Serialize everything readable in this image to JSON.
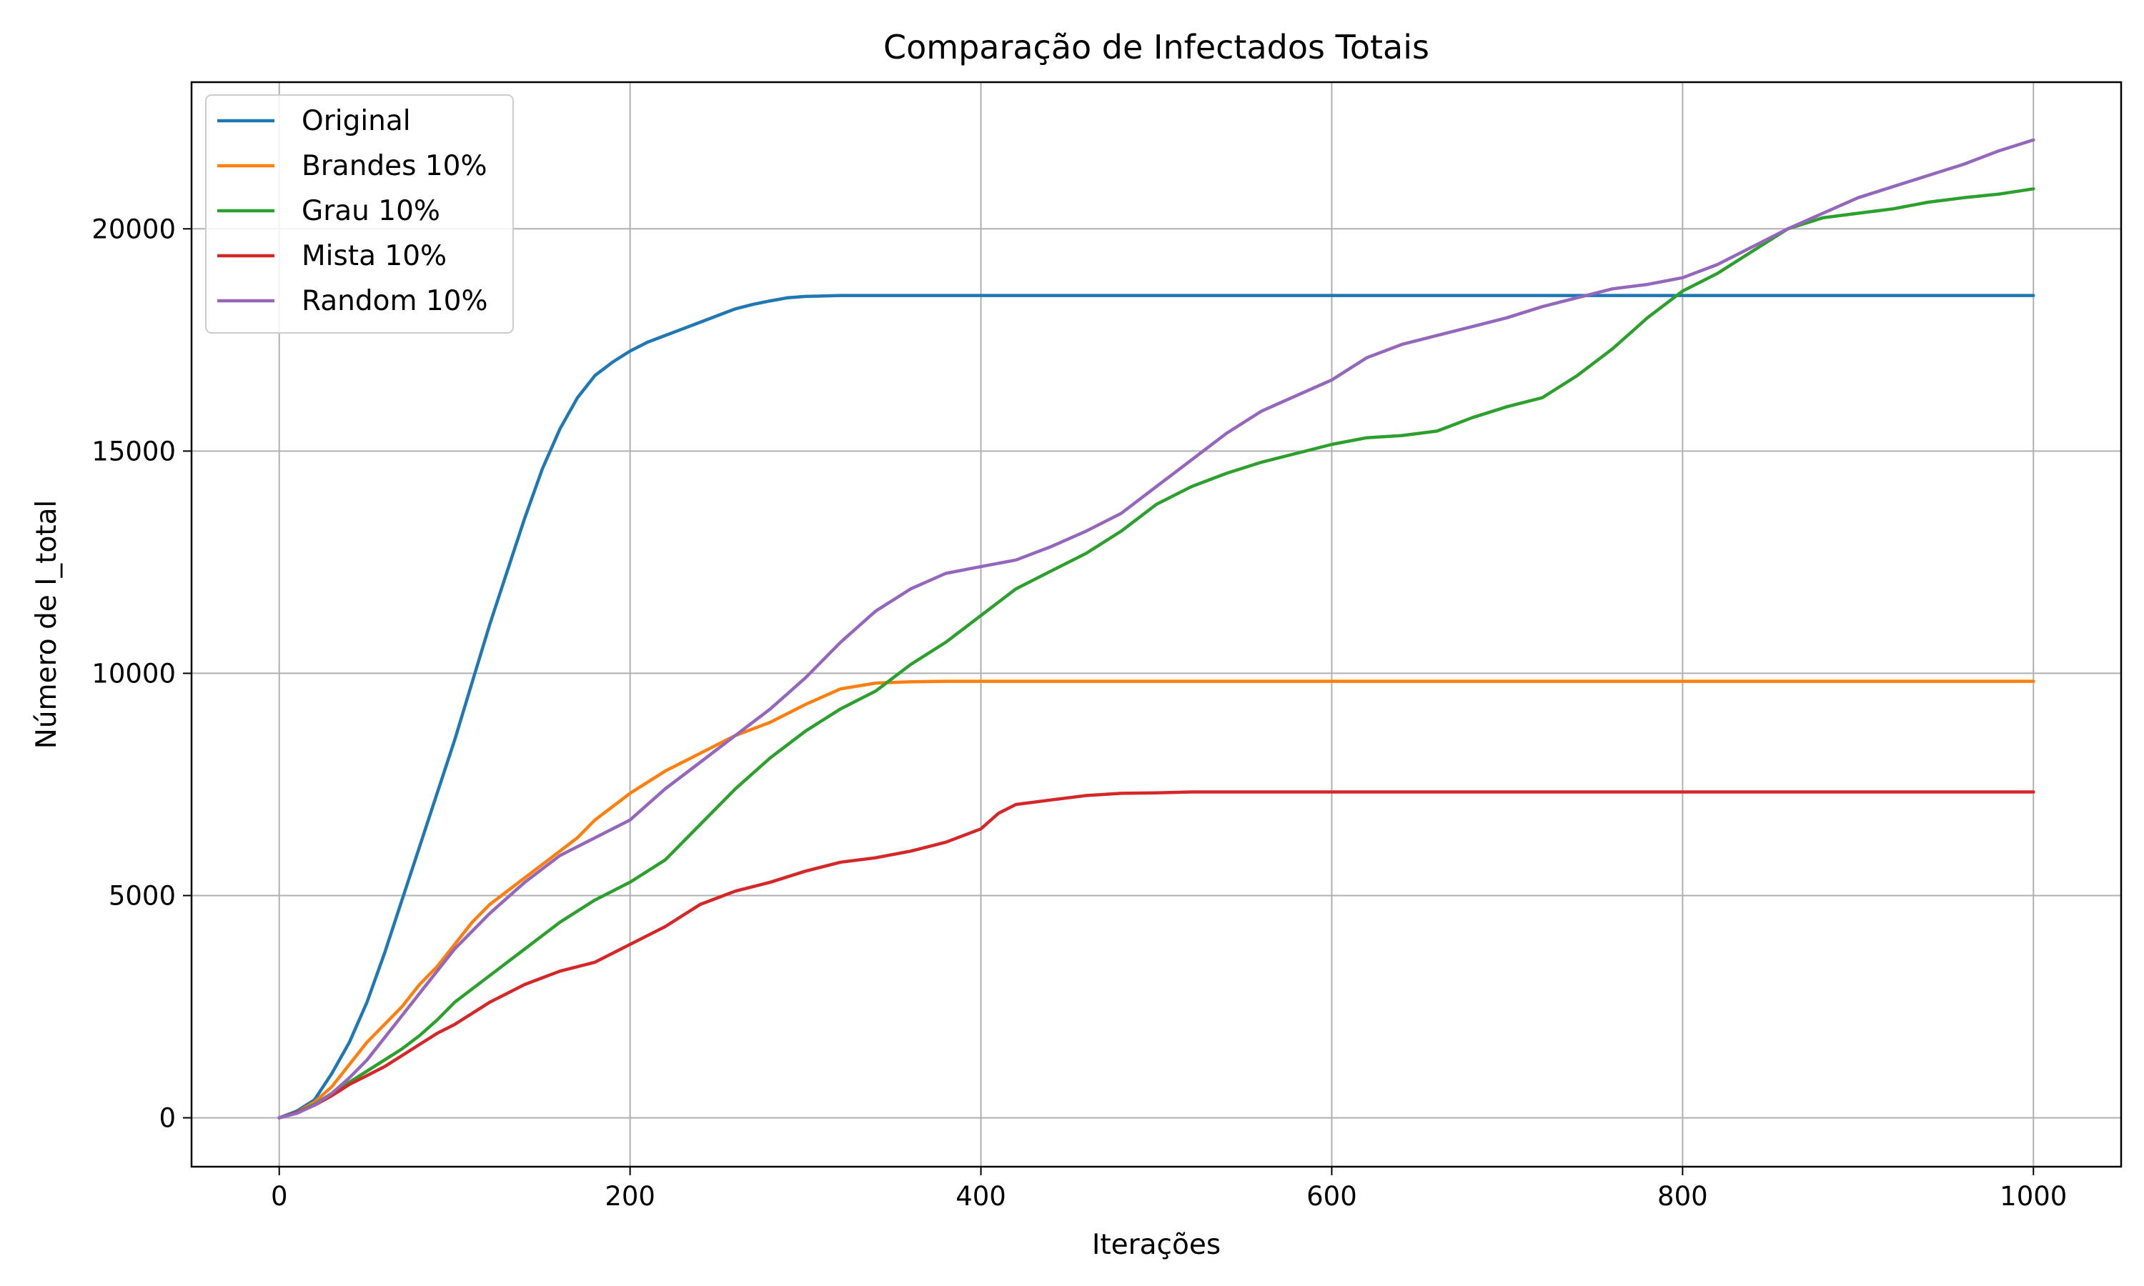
{
  "chart_data": {
    "type": "line",
    "title": "Comparação de Infectados Totais",
    "xlabel": "Iterações",
    "ylabel": "Número de I_total",
    "xlim": [
      -50,
      1050
    ],
    "ylim": [
      -1100,
      23300
    ],
    "xticks": [
      0,
      200,
      400,
      600,
      800,
      1000
    ],
    "yticks": [
      0,
      5000,
      10000,
      15000,
      20000
    ],
    "grid": true,
    "legend_position": "top-left",
    "series": [
      {
        "name": "Original",
        "color": "#1f77b4",
        "x": [
          0,
          10,
          20,
          30,
          40,
          50,
          60,
          70,
          80,
          90,
          100,
          110,
          120,
          130,
          140,
          150,
          160,
          170,
          180,
          190,
          200,
          210,
          220,
          230,
          240,
          250,
          260,
          270,
          280,
          290,
          300,
          320,
          350,
          400,
          500,
          600,
          700,
          800,
          900,
          1000
        ],
        "y": [
          0,
          150,
          400,
          1000,
          1700,
          2600,
          3700,
          4900,
          6100,
          7300,
          8500,
          9800,
          11100,
          12300,
          13500,
          14600,
          15500,
          16200,
          16700,
          17000,
          17250,
          17450,
          17600,
          17750,
          17900,
          18050,
          18200,
          18300,
          18380,
          18450,
          18480,
          18500,
          18500,
          18500,
          18500,
          18500,
          18500,
          18500,
          18500,
          18500
        ]
      },
      {
        "name": "Brandes 10%",
        "color": "#ff7f0e",
        "x": [
          0,
          10,
          20,
          30,
          40,
          50,
          60,
          70,
          80,
          90,
          100,
          110,
          120,
          130,
          140,
          150,
          160,
          170,
          180,
          190,
          200,
          220,
          240,
          260,
          280,
          300,
          320,
          340,
          360,
          380,
          400,
          500,
          600,
          700,
          800,
          900,
          1000
        ],
        "y": [
          0,
          120,
          350,
          700,
          1200,
          1700,
          2100,
          2500,
          3000,
          3400,
          3900,
          4400,
          4800,
          5100,
          5400,
          5700,
          6000,
          6300,
          6700,
          7000,
          7300,
          7800,
          8200,
          8600,
          8900,
          9300,
          9650,
          9780,
          9810,
          9820,
          9820,
          9820,
          9820,
          9820,
          9820,
          9820,
          9820
        ]
      },
      {
        "name": "Grau 10%",
        "color": "#2ca02c",
        "x": [
          0,
          10,
          20,
          30,
          40,
          50,
          60,
          70,
          80,
          90,
          100,
          120,
          140,
          160,
          180,
          200,
          220,
          240,
          260,
          280,
          300,
          320,
          340,
          360,
          380,
          400,
          420,
          440,
          460,
          480,
          500,
          520,
          540,
          560,
          580,
          600,
          620,
          640,
          660,
          680,
          700,
          720,
          740,
          760,
          780,
          800,
          820,
          840,
          860,
          880,
          900,
          920,
          940,
          960,
          980,
          1000
        ],
        "y": [
          0,
          120,
          300,
          550,
          800,
          1050,
          1300,
          1550,
          1850,
          2200,
          2600,
          3200,
          3800,
          4400,
          4900,
          5300,
          5800,
          6600,
          7400,
          8100,
          8700,
          9200,
          9600,
          10200,
          10700,
          11300,
          11900,
          12300,
          12700,
          13200,
          13800,
          14200,
          14500,
          14750,
          14950,
          15150,
          15300,
          15350,
          15450,
          15750,
          16000,
          16200,
          16700,
          17300,
          18000,
          18600,
          19000,
          19500,
          20000,
          20250,
          20350,
          20450,
          20600,
          20700,
          20780,
          20900
        ]
      },
      {
        "name": "Mista 10%",
        "color": "#d62728",
        "x": [
          0,
          10,
          20,
          30,
          40,
          50,
          60,
          70,
          80,
          90,
          100,
          120,
          140,
          160,
          180,
          200,
          220,
          240,
          260,
          280,
          300,
          320,
          340,
          360,
          380,
          400,
          410,
          420,
          440,
          460,
          480,
          500,
          520,
          600,
          700,
          800,
          900,
          1000
        ],
        "y": [
          0,
          120,
          280,
          500,
          750,
          950,
          1150,
          1400,
          1650,
          1900,
          2100,
          2600,
          3000,
          3300,
          3500,
          3900,
          4300,
          4800,
          5100,
          5300,
          5550,
          5750,
          5850,
          6000,
          6200,
          6500,
          6850,
          7050,
          7150,
          7250,
          7300,
          7310,
          7330,
          7330,
          7330,
          7330,
          7330,
          7330
        ]
      },
      {
        "name": "Random 10%",
        "color": "#9467bd",
        "x": [
          0,
          10,
          20,
          30,
          40,
          50,
          60,
          70,
          80,
          90,
          100,
          120,
          140,
          160,
          180,
          200,
          220,
          240,
          260,
          280,
          300,
          320,
          340,
          360,
          380,
          400,
          420,
          440,
          460,
          480,
          500,
          520,
          540,
          560,
          580,
          600,
          620,
          640,
          660,
          680,
          700,
          720,
          740,
          760,
          780,
          800,
          820,
          840,
          860,
          880,
          900,
          920,
          940,
          960,
          980,
          1000
        ],
        "y": [
          0,
          100,
          280,
          550,
          900,
          1300,
          1800,
          2300,
          2800,
          3300,
          3800,
          4600,
          5300,
          5900,
          6300,
          6700,
          7400,
          8000,
          8600,
          9200,
          9900,
          10700,
          11400,
          11900,
          12250,
          12400,
          12550,
          12850,
          13200,
          13600,
          14200,
          14800,
          15400,
          15900,
          16250,
          16600,
          17100,
          17400,
          17600,
          17800,
          18000,
          18250,
          18450,
          18650,
          18750,
          18900,
          19200,
          19600,
          20000,
          20350,
          20700,
          20950,
          21200,
          21450,
          21750,
          22000
        ]
      }
    ]
  }
}
